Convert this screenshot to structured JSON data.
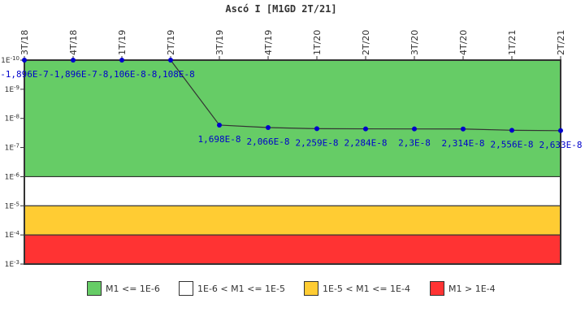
{
  "chart_data": {
    "type": "line",
    "title": "Ascó I [M1GD 2T/21]",
    "xlabel": "",
    "ylabel": "",
    "y_scale": "log",
    "y_inverted": true,
    "ylim": [
      1e-10,
      0.001
    ],
    "y_ticks": [
      "1E-10",
      "1E-9",
      "1E-8",
      "1E-7",
      "1E-6",
      "1E-5",
      "1E-4",
      "1E-3"
    ],
    "categories": [
      "3T/18",
      "4T/18",
      "1T/19",
      "2T/19",
      "3T/19",
      "4T/19",
      "1T/20",
      "2T/20",
      "3T/20",
      "4T/20",
      "1T/21",
      "2T/21"
    ],
    "series": [
      {
        "name": "M1",
        "values": [
          -1.896e-07,
          -1.896e-07,
          -8.106e-08,
          -8.108e-08,
          1.698e-08,
          2.066e-08,
          2.259e-08,
          2.284e-08,
          2.3e-08,
          2.314e-08,
          2.556e-08,
          2.633e-08
        ],
        "labels": [
          "-1,896E-7",
          "-1,896E-7",
          "-8,106E-8",
          "-8,108E-8",
          "1,698E-8",
          "2,066E-8",
          "2,259E-8",
          "2,284E-8",
          "2,3E-8",
          "2,314E-8",
          "2,556E-8",
          "2,633E-8"
        ],
        "line_color": "#333333",
        "marker_color": "#0000cc"
      }
    ],
    "bands": [
      {
        "from": 1e-10,
        "to": 1e-06,
        "color": "#66cc66",
        "label": "M1 <= 1E-6"
      },
      {
        "from": 1e-06,
        "to": 1e-05,
        "color": "#ffffff",
        "label": "1E-6 < M1 <= 1E-5"
      },
      {
        "from": 1e-05,
        "to": 0.0001,
        "color": "#ffcc33",
        "label": "1E-5 < M1 <= 1E-4"
      },
      {
        "from": 0.0001,
        "to": 0.001,
        "color": "#ff3333",
        "label": "M1 > 1E-4"
      }
    ],
    "grid": false,
    "legend_position": "bottom"
  }
}
